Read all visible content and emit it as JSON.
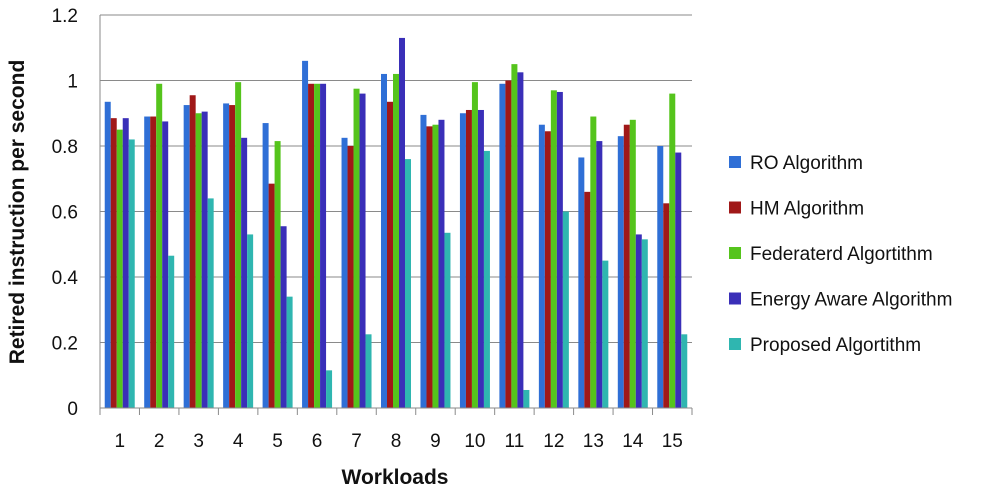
{
  "chart_data": {
    "type": "bar",
    "title": "",
    "xlabel": "Workloads",
    "ylabel": "Retired instruction  per second",
    "ylim": [
      0,
      1.2
    ],
    "yticks": [
      "0",
      "0.2",
      "0.4",
      "0.6",
      "0.8",
      "1",
      "1.2"
    ],
    "grid": true,
    "legend_position": "right",
    "categories": [
      "1",
      "2",
      "3",
      "4",
      "5",
      "6",
      "7",
      "8",
      "9",
      "10",
      "11",
      "12",
      "13",
      "14",
      "15"
    ],
    "series": [
      {
        "name": "RO Algorithm",
        "color": "#2f6fd6",
        "values": [
          0.935,
          0.89,
          0.925,
          0.93,
          0.87,
          1.06,
          0.825,
          1.02,
          0.895,
          0.9,
          0.99,
          0.865,
          0.765,
          0.83,
          0.8
        ]
      },
      {
        "name": "HM Algorithm",
        "color": "#a01818",
        "values": [
          0.885,
          0.89,
          0.955,
          0.925,
          0.685,
          0.99,
          0.8,
          0.935,
          0.86,
          0.91,
          1.0,
          0.845,
          0.66,
          0.865,
          0.625
        ]
      },
      {
        "name": "Federaterd Algortithm",
        "color": "#55c41c",
        "values": [
          0.85,
          0.99,
          0.9,
          0.995,
          0.815,
          0.99,
          0.975,
          1.02,
          0.865,
          0.995,
          1.05,
          0.97,
          0.89,
          0.88,
          0.96
        ]
      },
      {
        "name": "Energy Aware Algorithm",
        "color": "#3a2fb8",
        "values": [
          0.885,
          0.875,
          0.905,
          0.825,
          0.555,
          0.99,
          0.96,
          1.13,
          0.88,
          0.91,
          1.025,
          0.965,
          0.815,
          0.53,
          0.78
        ]
      },
      {
        "name": "Proposed Algortithm",
        "color": "#2fb6b0",
        "values": [
          0.82,
          0.465,
          0.64,
          0.53,
          0.34,
          0.115,
          0.225,
          0.76,
          0.535,
          0.785,
          0.055,
          0.6,
          0.45,
          0.515,
          0.225
        ]
      }
    ]
  }
}
